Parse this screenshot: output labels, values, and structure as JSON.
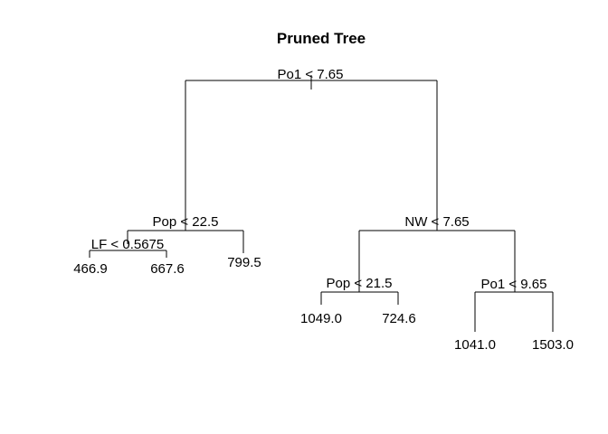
{
  "title": "Pruned Tree",
  "splits": {
    "root": "Po1 < 7.65",
    "left": "Pop < 22.5",
    "left_left": "LF < 0.5675",
    "right": "NW < 7.65",
    "right_left": "Pop < 21.5",
    "right_right": "Po1 < 9.65"
  },
  "leaves": {
    "ll_left": "466.9",
    "ll_right": "667.6",
    "left_right": "799.5",
    "rl_left": "1049.0",
    "rl_right": "724.6",
    "rr_left": "1041.0",
    "rr_right": "1503.0"
  }
}
